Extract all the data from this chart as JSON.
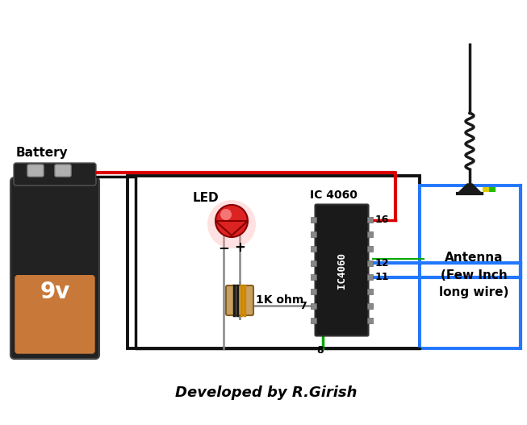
{
  "bg_color": "#ffffff",
  "title": "Developed by R.Girish",
  "battery_label": "Battery",
  "battery_9v": "9v",
  "led_label": "LED",
  "ic_label": "IC 4060",
  "resistor_label": "1K ohm",
  "antenna_label": "Antenna\n(Few Inch\nlong wire)",
  "wire_red": "#dd0000",
  "wire_black": "#111111",
  "wire_blue": "#2277ff",
  "wire_green": "#00aa00",
  "wire_gray": "#888888",
  "bat_dark": "#222222",
  "bat_orange": "#c8793a",
  "bat_nub_color": "#aaaaaa",
  "led_red_body": "#dd2222",
  "led_red_bright": "#ff4444",
  "led_glow_color": "#ffaaaa",
  "ic_body_color": "#1a1a1a",
  "res_body_color": "#c8a060",
  "res_band1": "#1a1a1a",
  "res_band2": "#1a1a1a",
  "res_band3": "#cc8800",
  "res_band4": "#cc8800",
  "ant_dark": "#1a1a1a",
  "ant_yellow": "#ddcc00",
  "ant_green": "#22bb00",
  "box_border": "#111111",
  "blue_box_border": "#2277ff",
  "pin_label_size": 9,
  "label_size": 10,
  "title_size": 13
}
